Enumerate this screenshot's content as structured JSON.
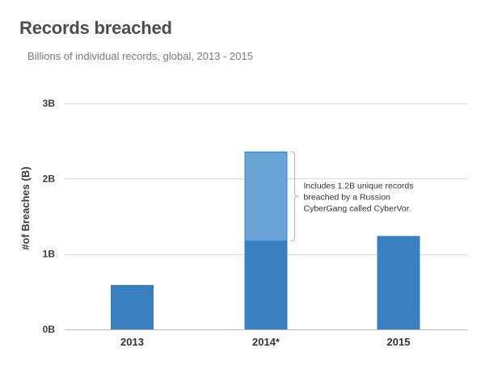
{
  "chart_data": {
    "type": "bar",
    "title": "Records breached",
    "subtitle": "Billions of individual records, global, 2013 - 2015",
    "ylabel": "#of Breaches (B)",
    "xlabel": "",
    "categories": [
      "2013",
      "2014*",
      "2015"
    ],
    "ylim": [
      0,
      3
    ],
    "y_ticks": [
      0,
      1,
      2,
      3
    ],
    "y_tick_labels": [
      "0B",
      "1B",
      "2B",
      "3B"
    ],
    "grid": true,
    "legend": "none",
    "series": [
      {
        "values": [
          0.59,
          1.17,
          1.24
        ],
        "color": "#3a80c1"
      },
      {
        "values": [
          0,
          1.19,
          0
        ],
        "color": "#6aa3d5"
      }
    ],
    "annotation": {
      "category": "2014*",
      "lines": [
        "Includes 1.2B unique records",
        "breached by a Russion",
        "CyberGang called CyberVor."
      ]
    },
    "colors": {
      "grid": "#d9d9d9",
      "axis": "#bbbbbb",
      "bracket": "#b5b5b5"
    }
  }
}
